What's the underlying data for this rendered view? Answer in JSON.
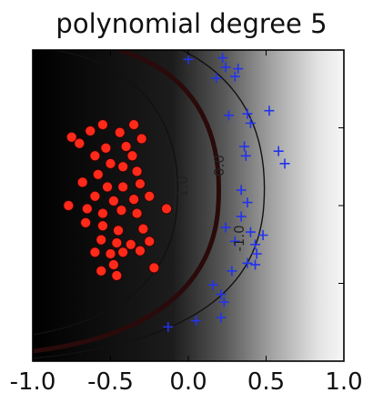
{
  "chart_data": {
    "type": "scatter",
    "title": "polynomial degree 5",
    "xlabel": "",
    "ylabel": "",
    "xlim": [
      -1.0,
      1.0
    ],
    "ylim": [
      -1.0,
      1.0
    ],
    "x_tick_labels": [
      "-1.0",
      "-0.5",
      "0.0",
      "0.5",
      "1.0"
    ],
    "background": "decision function shading: black (class red side) to white (class blue side)",
    "contours": [
      {
        "level": "-1.0",
        "label": "-1.0"
      },
      {
        "level": "0.0",
        "label": "0.0"
      },
      {
        "level": "1.0",
        "label": "1.0"
      }
    ],
    "series": [
      {
        "marker": "circle",
        "color": "#ff2a1a",
        "points": [
          [
            -0.75,
            0.44
          ],
          [
            -0.63,
            0.48
          ],
          [
            -0.55,
            0.52
          ],
          [
            -0.7,
            0.4
          ],
          [
            -0.53,
            0.37
          ],
          [
            -0.44,
            0.47
          ],
          [
            -0.35,
            0.52
          ],
          [
            -0.3,
            0.43
          ],
          [
            -0.4,
            0.38
          ],
          [
            -0.6,
            0.32
          ],
          [
            -0.5,
            0.27
          ],
          [
            -0.36,
            0.32
          ],
          [
            -0.42,
            0.25
          ],
          [
            -0.58,
            0.2
          ],
          [
            -0.33,
            0.22
          ],
          [
            -0.68,
            0.15
          ],
          [
            -0.52,
            0.12
          ],
          [
            -0.42,
            0.12
          ],
          [
            -0.31,
            0.14
          ],
          [
            -0.6,
            0.06
          ],
          [
            -0.48,
            0.03
          ],
          [
            -0.35,
            0.04
          ],
          [
            -0.25,
            0.06
          ],
          [
            -0.77,
            0.0
          ],
          [
            -0.65,
            -0.02
          ],
          [
            -0.55,
            -0.05
          ],
          [
            -0.43,
            -0.03
          ],
          [
            -0.33,
            -0.05
          ],
          [
            -0.14,
            -0.02
          ],
          [
            -0.66,
            -0.11
          ],
          [
            -0.55,
            -0.13
          ],
          [
            -0.45,
            -0.16
          ],
          [
            -0.29,
            -0.15
          ],
          [
            -0.56,
            -0.22
          ],
          [
            -0.46,
            -0.24
          ],
          [
            -0.37,
            -0.25
          ],
          [
            -0.25,
            -0.23
          ],
          [
            -0.6,
            -0.3
          ],
          [
            -0.5,
            -0.31
          ],
          [
            -0.42,
            -0.3
          ],
          [
            -0.31,
            -0.29
          ],
          [
            -0.48,
            -0.38
          ],
          [
            -0.56,
            -0.42
          ],
          [
            -0.46,
            -0.45
          ],
          [
            -0.22,
            -0.4
          ]
        ]
      },
      {
        "marker": "plus",
        "color": "#2233ee",
        "points": [
          [
            0.0,
            0.94
          ],
          [
            0.22,
            0.95
          ],
          [
            0.24,
            0.89
          ],
          [
            0.32,
            0.88
          ],
          [
            0.3,
            0.83
          ],
          [
            0.18,
            0.82
          ],
          [
            0.52,
            0.61
          ],
          [
            0.26,
            0.58
          ],
          [
            0.38,
            0.59
          ],
          [
            0.4,
            0.53
          ],
          [
            0.36,
            0.38
          ],
          [
            0.58,
            0.35
          ],
          [
            0.37,
            0.32
          ],
          [
            0.62,
            0.27
          ],
          [
            0.34,
            0.1
          ],
          [
            0.38,
            0.02
          ],
          [
            0.34,
            -0.07
          ],
          [
            0.24,
            -0.14
          ],
          [
            0.4,
            -0.17
          ],
          [
            0.48,
            -0.19
          ],
          [
            0.3,
            -0.23
          ],
          [
            0.43,
            -0.25
          ],
          [
            0.44,
            -0.31
          ],
          [
            0.38,
            -0.37
          ],
          [
            0.43,
            -0.38
          ],
          [
            0.28,
            -0.42
          ],
          [
            0.16,
            -0.51
          ],
          [
            0.21,
            -0.57
          ],
          [
            0.23,
            -0.62
          ],
          [
            0.21,
            -0.72
          ],
          [
            0.05,
            -0.74
          ],
          [
            -0.13,
            -0.78
          ]
        ]
      }
    ]
  }
}
